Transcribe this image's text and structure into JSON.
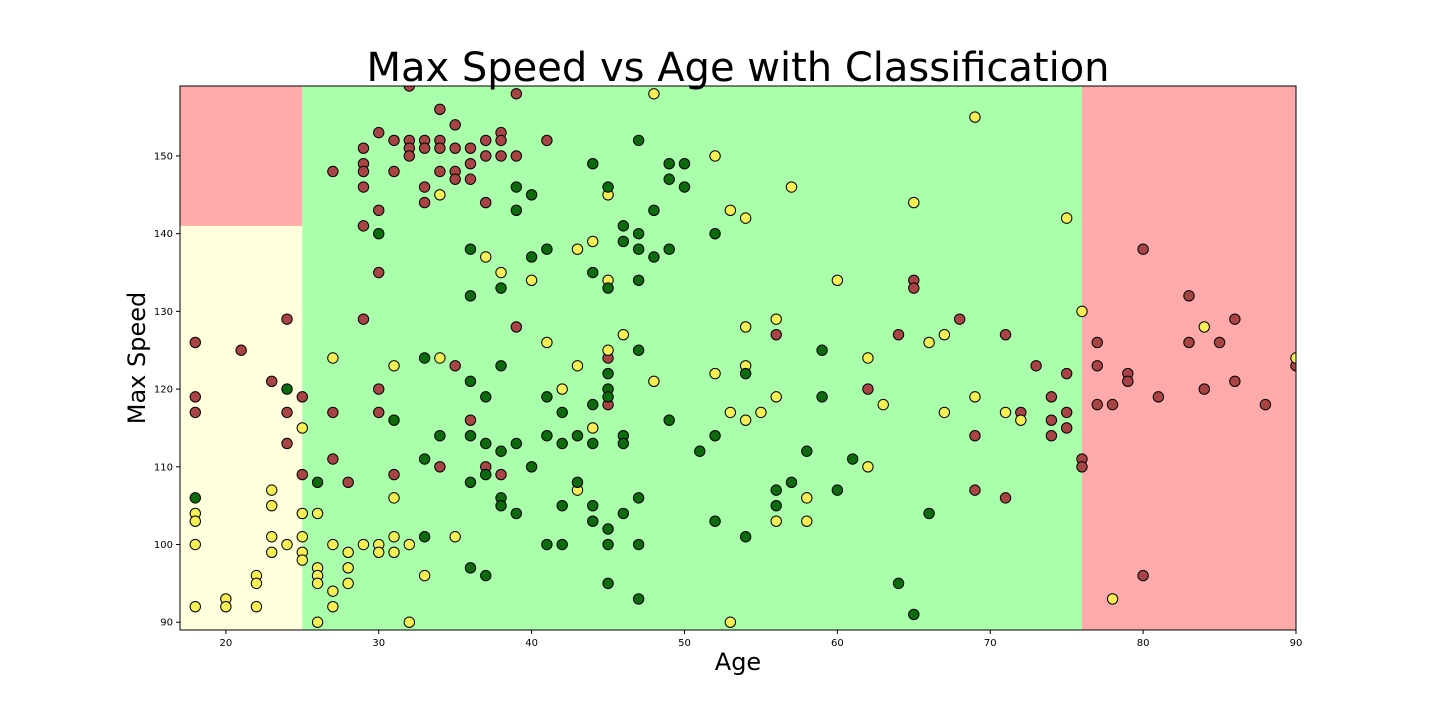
{
  "chart_data": {
    "type": "scatter",
    "title": "Max Speed vs Age with Classification",
    "xlabel": "Age",
    "ylabel": "Max Speed",
    "xlim": [
      17,
      90
    ],
    "ylim": [
      89,
      159
    ],
    "xticks": [
      20,
      30,
      40,
      50,
      60,
      70,
      80,
      90
    ],
    "yticks": [
      90,
      100,
      110,
      120,
      130,
      140,
      150
    ],
    "grid": false,
    "legend": "none",
    "colors": {
      "region_red": "#ffaaaa",
      "region_yellow": "#ffffdd",
      "region_green": "#aaffaa",
      "point_red": "#a94444",
      "point_yellow": "#f5ef55",
      "point_green": "#0d6a0d",
      "edge": "#000000"
    },
    "regions": [
      {
        "class": "yellow",
        "x": [
          17,
          25
        ],
        "y": [
          89,
          141
        ]
      },
      {
        "class": "red",
        "x": [
          17,
          25
        ],
        "y": [
          141,
          159
        ]
      },
      {
        "class": "green",
        "x": [
          25,
          76
        ],
        "y": [
          89,
          159
        ]
      },
      {
        "class": "red",
        "x": [
          76,
          90
        ],
        "y": [
          89,
          159
        ]
      }
    ],
    "series": [
      {
        "class": "red",
        "points": [
          [
            18,
            126
          ],
          [
            18,
            119
          ],
          [
            18,
            117
          ],
          [
            21,
            125
          ],
          [
            23,
            121
          ],
          [
            24,
            129
          ],
          [
            24,
            117
          ],
          [
            24,
            113
          ],
          [
            25,
            119
          ],
          [
            25,
            109
          ],
          [
            27,
            148
          ],
          [
            27,
            117
          ],
          [
            27,
            111
          ],
          [
            28,
            108
          ],
          [
            29,
            151
          ],
          [
            29,
            149
          ],
          [
            29,
            148
          ],
          [
            29,
            146
          ],
          [
            29,
            141
          ],
          [
            29,
            129
          ],
          [
            30,
            153
          ],
          [
            30,
            143
          ],
          [
            30,
            135
          ],
          [
            30,
            120
          ],
          [
            30,
            117
          ],
          [
            31,
            152
          ],
          [
            31,
            148
          ],
          [
            31,
            109
          ],
          [
            32,
            159
          ],
          [
            32,
            152
          ],
          [
            32,
            151
          ],
          [
            32,
            150
          ],
          [
            33,
            152
          ],
          [
            33,
            151
          ],
          [
            33,
            146
          ],
          [
            33,
            144
          ],
          [
            34,
            156
          ],
          [
            34,
            152
          ],
          [
            34,
            151
          ],
          [
            34,
            148
          ],
          [
            34,
            110
          ],
          [
            35,
            154
          ],
          [
            35,
            151
          ],
          [
            35,
            148
          ],
          [
            35,
            147
          ],
          [
            35,
            123
          ],
          [
            36,
            151
          ],
          [
            36,
            149
          ],
          [
            36,
            147
          ],
          [
            36,
            116
          ],
          [
            37,
            152
          ],
          [
            37,
            150
          ],
          [
            37,
            144
          ],
          [
            37,
            110
          ],
          [
            38,
            153
          ],
          [
            38,
            152
          ],
          [
            38,
            150
          ],
          [
            38,
            109
          ],
          [
            39,
            158
          ],
          [
            39,
            150
          ],
          [
            39,
            128
          ],
          [
            41,
            152
          ],
          [
            45,
            124
          ],
          [
            45,
            118
          ],
          [
            56,
            127
          ],
          [
            62,
            120
          ],
          [
            64,
            127
          ],
          [
            65,
            134
          ],
          [
            65,
            133
          ],
          [
            68,
            129
          ],
          [
            69,
            114
          ],
          [
            69,
            107
          ],
          [
            71,
            127
          ],
          [
            71,
            106
          ],
          [
            72,
            117
          ],
          [
            73,
            123
          ],
          [
            74,
            119
          ],
          [
            74,
            116
          ],
          [
            74,
            114
          ],
          [
            75,
            122
          ],
          [
            75,
            117
          ],
          [
            75,
            115
          ],
          [
            76,
            111
          ],
          [
            76,
            110
          ],
          [
            77,
            126
          ],
          [
            77,
            123
          ],
          [
            77,
            118
          ],
          [
            78,
            118
          ],
          [
            79,
            122
          ],
          [
            79,
            121
          ],
          [
            80,
            138
          ],
          [
            80,
            96
          ],
          [
            81,
            119
          ],
          [
            83,
            132
          ],
          [
            83,
            126
          ],
          [
            84,
            120
          ],
          [
            85,
            126
          ],
          [
            86,
            129
          ],
          [
            86,
            121
          ],
          [
            88,
            118
          ],
          [
            90,
            123
          ]
        ]
      },
      {
        "class": "yellow",
        "points": [
          [
            18,
            104
          ],
          [
            18,
            103
          ],
          [
            18,
            100
          ],
          [
            18,
            92
          ],
          [
            20,
            93
          ],
          [
            20,
            92
          ],
          [
            22,
            96
          ],
          [
            22,
            95
          ],
          [
            22,
            92
          ],
          [
            23,
            107
          ],
          [
            23,
            105
          ],
          [
            23,
            101
          ],
          [
            23,
            99
          ],
          [
            24,
            100
          ],
          [
            25,
            115
          ],
          [
            25,
            104
          ],
          [
            25,
            101
          ],
          [
            25,
            99
          ],
          [
            25,
            98
          ],
          [
            26,
            104
          ],
          [
            26,
            97
          ],
          [
            26,
            96
          ],
          [
            26,
            95
          ],
          [
            26,
            90
          ],
          [
            27,
            124
          ],
          [
            27,
            100
          ],
          [
            27,
            94
          ],
          [
            27,
            92
          ],
          [
            28,
            99
          ],
          [
            28,
            97
          ],
          [
            28,
            95
          ],
          [
            29,
            100
          ],
          [
            30,
            100
          ],
          [
            30,
            99
          ],
          [
            31,
            123
          ],
          [
            31,
            106
          ],
          [
            31,
            101
          ],
          [
            31,
            99
          ],
          [
            32,
            100
          ],
          [
            32,
            90
          ],
          [
            33,
            96
          ],
          [
            34,
            145
          ],
          [
            34,
            124
          ],
          [
            35,
            101
          ],
          [
            37,
            137
          ],
          [
            38,
            135
          ],
          [
            40,
            134
          ],
          [
            41,
            126
          ],
          [
            42,
            120
          ],
          [
            43,
            138
          ],
          [
            43,
            123
          ],
          [
            43,
            107
          ],
          [
            44,
            139
          ],
          [
            44,
            115
          ],
          [
            45,
            145
          ],
          [
            45,
            134
          ],
          [
            45,
            125
          ],
          [
            46,
            127
          ],
          [
            48,
            158
          ],
          [
            48,
            121
          ],
          [
            52,
            150
          ],
          [
            52,
            122
          ],
          [
            53,
            143
          ],
          [
            53,
            117
          ],
          [
            53,
            90
          ],
          [
            54,
            142
          ],
          [
            54,
            128
          ],
          [
            54,
            123
          ],
          [
            54,
            116
          ],
          [
            55,
            117
          ],
          [
            56,
            129
          ],
          [
            56,
            119
          ],
          [
            56,
            103
          ],
          [
            57,
            146
          ],
          [
            58,
            106
          ],
          [
            58,
            103
          ],
          [
            60,
            134
          ],
          [
            62,
            124
          ],
          [
            62,
            110
          ],
          [
            63,
            118
          ],
          [
            65,
            144
          ],
          [
            66,
            126
          ],
          [
            67,
            127
          ],
          [
            67,
            117
          ],
          [
            69,
            155
          ],
          [
            69,
            119
          ],
          [
            71,
            117
          ],
          [
            72,
            116
          ],
          [
            75,
            142
          ],
          [
            76,
            130
          ],
          [
            78,
            93
          ],
          [
            84,
            128
          ],
          [
            90,
            124
          ]
        ]
      },
      {
        "class": "green",
        "points": [
          [
            18,
            106
          ],
          [
            24,
            120
          ],
          [
            26,
            108
          ],
          [
            30,
            140
          ],
          [
            31,
            116
          ],
          [
            33,
            124
          ],
          [
            33,
            111
          ],
          [
            33,
            101
          ],
          [
            34,
            114
          ],
          [
            36,
            138
          ],
          [
            36,
            132
          ],
          [
            36,
            121
          ],
          [
            36,
            114
          ],
          [
            36,
            108
          ],
          [
            36,
            97
          ],
          [
            37,
            119
          ],
          [
            37,
            113
          ],
          [
            37,
            109
          ],
          [
            37,
            96
          ],
          [
            38,
            133
          ],
          [
            38,
            123
          ],
          [
            38,
            112
          ],
          [
            38,
            106
          ],
          [
            38,
            105
          ],
          [
            39,
            146
          ],
          [
            39,
            143
          ],
          [
            39,
            113
          ],
          [
            39,
            104
          ],
          [
            40,
            145
          ],
          [
            40,
            137
          ],
          [
            40,
            110
          ],
          [
            41,
            138
          ],
          [
            41,
            119
          ],
          [
            41,
            114
          ],
          [
            41,
            100
          ],
          [
            42,
            117
          ],
          [
            42,
            113
          ],
          [
            42,
            105
          ],
          [
            42,
            100
          ],
          [
            43,
            114
          ],
          [
            43,
            108
          ],
          [
            44,
            149
          ],
          [
            44,
            135
          ],
          [
            44,
            118
          ],
          [
            44,
            113
          ],
          [
            44,
            105
          ],
          [
            44,
            103
          ],
          [
            45,
            146
          ],
          [
            45,
            133
          ],
          [
            45,
            122
          ],
          [
            45,
            120
          ],
          [
            45,
            119
          ],
          [
            45,
            102
          ],
          [
            45,
            100
          ],
          [
            45,
            95
          ],
          [
            46,
            141
          ],
          [
            46,
            139
          ],
          [
            46,
            114
          ],
          [
            46,
            113
          ],
          [
            46,
            104
          ],
          [
            47,
            152
          ],
          [
            47,
            140
          ],
          [
            47,
            138
          ],
          [
            47,
            134
          ],
          [
            47,
            125
          ],
          [
            47,
            106
          ],
          [
            47,
            100
          ],
          [
            47,
            93
          ],
          [
            48,
            143
          ],
          [
            48,
            137
          ],
          [
            49,
            149
          ],
          [
            49,
            147
          ],
          [
            49,
            138
          ],
          [
            49,
            116
          ],
          [
            50,
            149
          ],
          [
            50,
            146
          ],
          [
            51,
            112
          ],
          [
            52,
            140
          ],
          [
            52,
            114
          ],
          [
            52,
            103
          ],
          [
            54,
            122
          ],
          [
            54,
            101
          ],
          [
            56,
            107
          ],
          [
            56,
            105
          ],
          [
            57,
            108
          ],
          [
            58,
            112
          ],
          [
            59,
            125
          ],
          [
            59,
            119
          ],
          [
            60,
            107
          ],
          [
            61,
            111
          ],
          [
            64,
            95
          ],
          [
            65,
            91
          ],
          [
            66,
            104
          ]
        ]
      }
    ]
  }
}
